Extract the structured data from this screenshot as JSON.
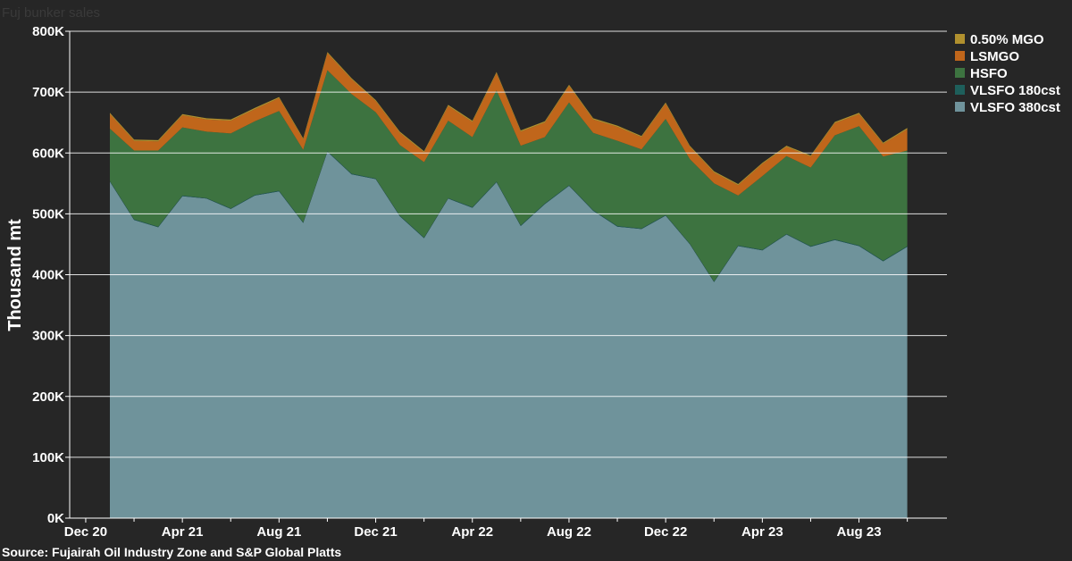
{
  "title": "Fuj bunker sales",
  "source": "Source: Fujairah Oil Industry Zone and S&P Global Platts",
  "chart_data": {
    "type": "area",
    "stacked": true,
    "ylabel": "Thousand mt",
    "ylim": [
      0,
      800
    ],
    "y_ticks": [
      {
        "value": 0,
        "label": "0K"
      },
      {
        "value": 100,
        "label": "100K"
      },
      {
        "value": 200,
        "label": "200K"
      },
      {
        "value": 300,
        "label": "300K"
      },
      {
        "value": 400,
        "label": "400K"
      },
      {
        "value": 500,
        "label": "500K"
      },
      {
        "value": 600,
        "label": "600K"
      },
      {
        "value": 700,
        "label": "700K"
      },
      {
        "value": 800,
        "label": "800K"
      }
    ],
    "x_ticks": [
      {
        "index": -1,
        "label": "Dec 20"
      },
      {
        "index": 3,
        "label": "Apr 21"
      },
      {
        "index": 7,
        "label": "Aug 21"
      },
      {
        "index": 11,
        "label": "Dec 21"
      },
      {
        "index": 15,
        "label": "Apr 22"
      },
      {
        "index": 19,
        "label": "Aug 22"
      },
      {
        "index": 23,
        "label": "Dec 22"
      },
      {
        "index": 27,
        "label": "Apr 23"
      },
      {
        "index": 31,
        "label": "Aug 23"
      }
    ],
    "x": [
      "Jan 21",
      "Feb 21",
      "Mar 21",
      "Apr 21",
      "May 21",
      "Jun 21",
      "Jul 21",
      "Aug 21",
      "Sep 21",
      "Oct 21",
      "Nov 21",
      "Dec 21",
      "Jan 22",
      "Feb 22",
      "Mar 22",
      "Apr 22",
      "May 22",
      "Jun 22",
      "Jul 22",
      "Aug 22",
      "Sep 22",
      "Oct 22",
      "Nov 22",
      "Dec 22",
      "Jan 23",
      "Feb 23",
      "Mar 23",
      "Apr 23",
      "May 23",
      "Jun 23",
      "Jul 23",
      "Aug 23",
      "Sep 23",
      "Oct 23"
    ],
    "grid": true,
    "legend_position": "top-right",
    "series": [
      {
        "name": "VLSFO 380cst",
        "color": "#6f939b",
        "values": [
          553,
          490,
          478,
          529,
          525,
          508,
          530,
          537,
          485,
          602,
          565,
          557,
          496,
          460,
          525,
          510,
          552,
          480,
          516,
          546,
          505,
          479,
          475,
          497,
          450,
          388,
          447,
          440,
          466,
          446,
          457,
          447,
          422,
          446
        ]
      },
      {
        "name": "VLSFO 180cst",
        "color": "#1e5f5b",
        "values": [
          1,
          1,
          1,
          1,
          1,
          1,
          1,
          1,
          1,
          1,
          1,
          1,
          1,
          1,
          1,
          1,
          1,
          1,
          1,
          1,
          1,
          1,
          1,
          1,
          1,
          1,
          1,
          1,
          1,
          1,
          1,
          1,
          1,
          1
        ]
      },
      {
        "name": "HSFO",
        "color": "#3d7340",
        "values": [
          86,
          113,
          125,
          112,
          109,
          123,
          121,
          131,
          119,
          133,
          131,
          109,
          116,
          124,
          127,
          115,
          150,
          131,
          109,
          136,
          127,
          140,
          130,
          158,
          139,
          161,
          82,
          121,
          128,
          129,
          171,
          196,
          171,
          157
        ]
      },
      {
        "name": "LSMGO",
        "color": "#c0661b",
        "values": [
          24,
          16,
          15,
          20,
          20,
          21,
          20,
          21,
          17,
          28,
          24,
          18,
          20,
          16,
          24,
          25,
          28,
          23,
          24,
          27,
          22,
          23,
          20,
          25,
          20,
          18,
          17,
          20,
          15,
          18,
          20,
          20,
          21,
          35
        ]
      },
      {
        "name": "0.50% MGO",
        "color": "#b0902e",
        "values": [
          2,
          2,
          2,
          2,
          2,
          2,
          2,
          2,
          2,
          2,
          2,
          2,
          2,
          2,
          2,
          2,
          2,
          2,
          2,
          2,
          2,
          2,
          2,
          2,
          2,
          2,
          2,
          2,
          2,
          2,
          2,
          2,
          2,
          2
        ]
      }
    ]
  }
}
